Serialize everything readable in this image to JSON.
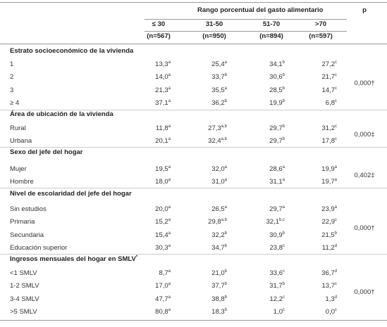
{
  "header": {
    "group_title": "Rango porcentual del gasto alimentario",
    "p_title": "p",
    "columns": [
      "≤ 30",
      "31-50",
      "51-70",
      ">70"
    ],
    "counts": [
      "(n=567)",
      "(n=950)",
      "(n=894)",
      "(n=597)"
    ]
  },
  "table": {
    "sections": [
      {
        "title": "Estrato socioeconómico de la vivienda",
        "p": "0,000†",
        "rows": [
          {
            "label": "1",
            "cells": [
              {
                "value": "13,3",
                "sup": "a"
              },
              {
                "value": "25,4",
                "sup": "a"
              },
              {
                "value": "34,1",
                "sup": "b"
              },
              {
                "value": "27,2",
                "sup": "c"
              }
            ]
          },
          {
            "label": "2",
            "cells": [
              {
                "value": "14,0",
                "sup": "a"
              },
              {
                "value": "33,7",
                "sup": "b"
              },
              {
                "value": "30,6",
                "sup": "b"
              },
              {
                "value": "21,7",
                "sup": "c"
              }
            ]
          },
          {
            "label": "3",
            "cells": [
              {
                "value": "21,3",
                "sup": "a"
              },
              {
                "value": "35,5",
                "sup": "a"
              },
              {
                "value": "28,5",
                "sup": "b"
              },
              {
                "value": "14,7",
                "sup": "c"
              }
            ]
          },
          {
            "label": "≥ 4",
            "cells": [
              {
                "value": "37,1",
                "sup": "a"
              },
              {
                "value": "36,2",
                "sup": "b"
              },
              {
                "value": "19,9",
                "sup": "b"
              },
              {
                "value": "6,8",
                "sup": "c"
              }
            ]
          }
        ]
      },
      {
        "title": "Área de ubicación de la vivienda",
        "p": "0,000‡",
        "rows": [
          {
            "label": "Rural",
            "cells": [
              {
                "value": "11,8",
                "sup": "a"
              },
              {
                "value": "27,3",
                "sup": "a,b"
              },
              {
                "value": "29,7",
                "sup": "b"
              },
              {
                "value": "31,2",
                "sup": "c"
              }
            ]
          },
          {
            "label": "Urbana",
            "cells": [
              {
                "value": "20,1",
                "sup": "a"
              },
              {
                "value": "32,4",
                "sup": "a,b"
              },
              {
                "value": "29,7",
                "sup": "b"
              },
              {
                "value": "17,8",
                "sup": "c"
              }
            ]
          }
        ]
      },
      {
        "title": "Sexo del jefe del hogar",
        "p": "0,402‡",
        "rows": [
          {
            "label": "Mujer",
            "cells": [
              {
                "value": "19,5",
                "sup": "a"
              },
              {
                "value": "32,0",
                "sup": "a"
              },
              {
                "value": "28,6",
                "sup": "a"
              },
              {
                "value": "19,9",
                "sup": "a"
              }
            ]
          },
          {
            "label": "Hombre",
            "cells": [
              {
                "value": "18,0",
                "sup": "a"
              },
              {
                "value": "31,0",
                "sup": "a"
              },
              {
                "value": "31,1",
                "sup": "a"
              },
              {
                "value": "19,7",
                "sup": "a"
              }
            ]
          }
        ]
      },
      {
        "title": "Nivel de escolaridad del jefe del hogar",
        "p": "0,000†",
        "rows": [
          {
            "label": "Sin estudios",
            "cells": [
              {
                "value": "20,0",
                "sup": "a"
              },
              {
                "value": "26,5",
                "sup": "a"
              },
              {
                "value": "29,7",
                "sup": "a"
              },
              {
                "value": "23,9",
                "sup": "a"
              }
            ]
          },
          {
            "label": "Primaria",
            "cells": [
              {
                "value": "15,2",
                "sup": "a"
              },
              {
                "value": "29,8",
                "sup": "a,b"
              },
              {
                "value": "32,1",
                "sup": "b,c"
              },
              {
                "value": "22,9",
                "sup": "c"
              }
            ]
          },
          {
            "label": "Secundaria",
            "cells": [
              {
                "value": "15,4",
                "sup": "a"
              },
              {
                "value": "32,2",
                "sup": "b"
              },
              {
                "value": "30,9",
                "sup": "b"
              },
              {
                "value": "21,5",
                "sup": "b"
              }
            ]
          },
          {
            "label": "Educación superior",
            "cells": [
              {
                "value": "30,3",
                "sup": "a"
              },
              {
                "value": "34,7",
                "sup": "b"
              },
              {
                "value": "23,8",
                "sup": "c"
              },
              {
                "value": "11,2",
                "sup": "d"
              }
            ]
          }
        ]
      },
      {
        "title": "Ingresos mensuales del hogar en SMLV",
        "title_sup": "*",
        "p": "0,000†",
        "rows": [
          {
            "label": "<1 SMLV",
            "cells": [
              {
                "value": "8,7",
                "sup": "a"
              },
              {
                "value": "21,0",
                "sup": "b"
              },
              {
                "value": "33,6",
                "sup": "c"
              },
              {
                "value": "36,7",
                "sup": "d"
              }
            ]
          },
          {
            "label": "1-2 SMLV",
            "cells": [
              {
                "value": "17,0",
                "sup": "a"
              },
              {
                "value": "37,7",
                "sup": "b"
              },
              {
                "value": "31,7",
                "sup": "b"
              },
              {
                "value": "13,7",
                "sup": "c"
              }
            ]
          },
          {
            "label": "3-4 SMLV",
            "cells": [
              {
                "value": "47,7",
                "sup": "a"
              },
              {
                "value": "38,8",
                "sup": "b"
              },
              {
                "value": "12,2",
                "sup": "c"
              },
              {
                "value": "1,3",
                "sup": "d"
              }
            ]
          },
          {
            "label": ">5 SMLV",
            "cells": [
              {
                "value": "80,8",
                "sup": "a"
              },
              {
                "value": "18,3",
                "sup": "b"
              },
              {
                "value": "1,0",
                "sup": "c"
              },
              {
                "value": "0,0",
                "sup": "c"
              }
            ]
          }
        ]
      }
    ]
  }
}
